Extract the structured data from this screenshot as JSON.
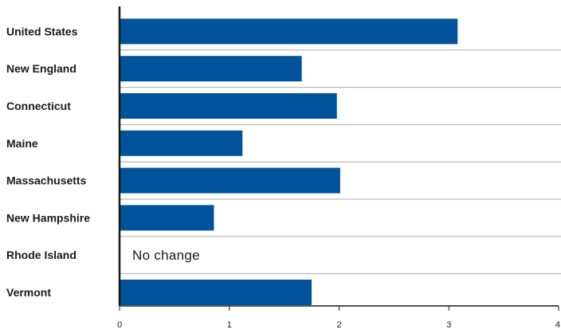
{
  "chart_data": {
    "type": "bar",
    "orientation": "horizontal",
    "categories": [
      "United States",
      "New England",
      "Connecticut",
      "Maine",
      "Massachusetts",
      "New Hampshire",
      "Rhode Island",
      "Vermont"
    ],
    "values": [
      3.08,
      1.66,
      1.98,
      1.12,
      2.01,
      0.86,
      0,
      1.75
    ],
    "annotations": [
      {
        "category": "Rhode Island",
        "text": "No change"
      }
    ],
    "title": "",
    "xlabel": "",
    "ylabel": "",
    "xlim": [
      0,
      4
    ],
    "xticks": [
      "0",
      "1",
      "2",
      "3",
      "4"
    ],
    "grid": "horizontal separators between bars",
    "bar_color": "#00539b"
  }
}
